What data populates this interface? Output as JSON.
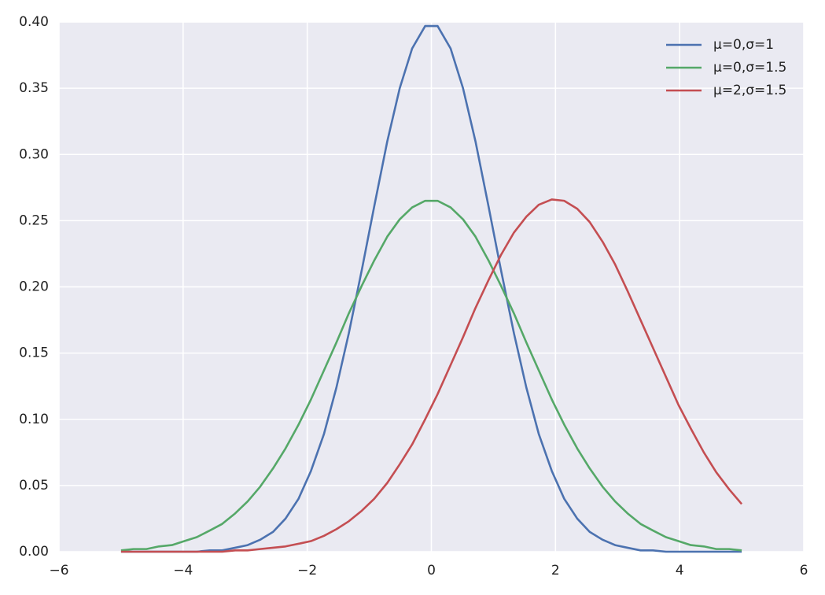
{
  "chart_data": {
    "type": "line",
    "x": [
      -5.0,
      -4.8,
      -4.59,
      -4.39,
      -4.18,
      -3.98,
      -3.78,
      -3.57,
      -3.37,
      -3.16,
      -2.96,
      -2.76,
      -2.55,
      -2.35,
      -2.14,
      -1.94,
      -1.73,
      -1.53,
      -1.33,
      -1.12,
      -0.92,
      -0.71,
      -0.51,
      -0.31,
      -0.1,
      0.1,
      0.31,
      0.51,
      0.71,
      0.92,
      1.12,
      1.33,
      1.53,
      1.73,
      1.94,
      2.14,
      2.35,
      2.55,
      2.76,
      2.96,
      3.16,
      3.37,
      3.57,
      3.78,
      3.98,
      4.18,
      4.39,
      4.59,
      4.8,
      5.0
    ],
    "series": [
      {
        "name": "μ=0,σ=1",
        "color": "#4c72b0",
        "values": [
          0,
          0,
          0,
          0,
          0,
          0,
          0,
          0.001,
          0.001,
          0.003,
          0.005,
          0.009,
          0.015,
          0.025,
          0.04,
          0.061,
          0.089,
          0.124,
          0.165,
          0.213,
          0.261,
          0.31,
          0.35,
          0.38,
          0.397,
          0.397,
          0.38,
          0.35,
          0.31,
          0.261,
          0.213,
          0.165,
          0.124,
          0.089,
          0.061,
          0.04,
          0.025,
          0.015,
          0.009,
          0.005,
          0.003,
          0.001,
          0.001,
          0,
          0,
          0,
          0,
          0,
          0,
          0
        ]
      },
      {
        "name": "μ=0,σ=1.5",
        "color": "#55a868",
        "values": [
          0.001,
          0.002,
          0.002,
          0.004,
          0.005,
          0.008,
          0.011,
          0.016,
          0.021,
          0.029,
          0.038,
          0.049,
          0.063,
          0.078,
          0.096,
          0.115,
          0.137,
          0.158,
          0.18,
          0.201,
          0.22,
          0.238,
          0.251,
          0.26,
          0.265,
          0.265,
          0.26,
          0.251,
          0.238,
          0.22,
          0.201,
          0.18,
          0.158,
          0.137,
          0.115,
          0.096,
          0.078,
          0.063,
          0.049,
          0.038,
          0.029,
          0.021,
          0.016,
          0.011,
          0.008,
          0.005,
          0.004,
          0.002,
          0.002,
          0.001
        ]
      },
      {
        "name": "μ=2,σ=1.5",
        "color": "#c44e52",
        "values": [
          0,
          0,
          0,
          0,
          0,
          0,
          0,
          0,
          0,
          0.001,
          0.001,
          0.002,
          0.003,
          0.004,
          0.006,
          0.008,
          0.012,
          0.017,
          0.023,
          0.031,
          0.04,
          0.052,
          0.066,
          0.081,
          0.1,
          0.119,
          0.141,
          0.162,
          0.184,
          0.205,
          0.224,
          0.241,
          0.253,
          0.262,
          0.266,
          0.265,
          0.259,
          0.249,
          0.234,
          0.217,
          0.197,
          0.175,
          0.154,
          0.132,
          0.111,
          0.093,
          0.075,
          0.06,
          0.047,
          0.036
        ]
      }
    ],
    "xlim": [
      -6,
      6
    ],
    "xticks": [
      {
        "value": -6,
        "label": "−6"
      },
      {
        "value": -4,
        "label": "−4"
      },
      {
        "value": -2,
        "label": "−2"
      },
      0,
      2,
      4,
      6
    ],
    "ylim": [
      0,
      0.4
    ],
    "yticks": [
      {
        "value": 0,
        "label": "0.00"
      },
      {
        "value": 0.05,
        "label": "0.05"
      },
      {
        "value": 0.1,
        "label": "0.10"
      },
      {
        "value": 0.15,
        "label": "0.15"
      },
      {
        "value": 0.2,
        "label": "0.20"
      },
      {
        "value": 0.25,
        "label": "0.25"
      },
      {
        "value": 0.3,
        "label": "0.30"
      },
      {
        "value": 0.35,
        "label": "0.35"
      },
      {
        "value": 0.4,
        "label": "0.40"
      }
    ],
    "grid": true,
    "legend": "upper right"
  }
}
